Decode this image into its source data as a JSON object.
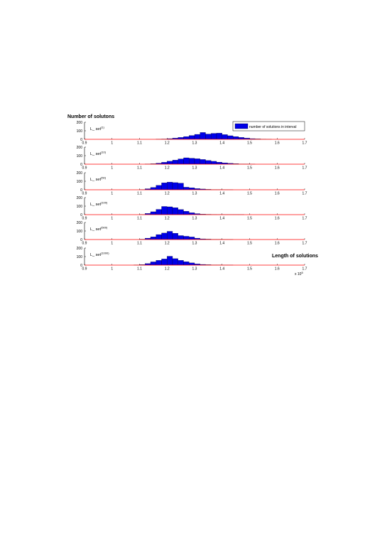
{
  "figure": {
    "ylabel": "Number of solutons",
    "xlabel": "Length of solutions",
    "x_multiplier": {
      "base": "x 10",
      "exp": "5"
    },
    "legend": "number of solutions in interval"
  },
  "colors": {
    "bar": "#0000e6",
    "baseline": "#ff0000"
  },
  "chart_data": [
    {
      "type": "bar",
      "label": "L_ set",
      "sup": "(1)",
      "xlim": [
        0.9,
        1.7
      ],
      "ylim": [
        0,
        200
      ],
      "bin_width": 0.02,
      "x_ticks": [
        "0.9",
        "1",
        "1.1",
        "1.2",
        "1.3",
        "1.4",
        "1.5",
        "1.6",
        "1.7"
      ],
      "y_ticks": [
        "0",
        "100",
        "200"
      ],
      "bin_starts": [
        1.16,
        1.18,
        1.2,
        1.22,
        1.24,
        1.26,
        1.28,
        1.3,
        1.32,
        1.34,
        1.36,
        1.38,
        1.4,
        1.42,
        1.44,
        1.46,
        1.48,
        1.5,
        1.52,
        1.54,
        1.56
      ],
      "values": [
        2,
        4,
        8,
        14,
        22,
        32,
        45,
        58,
        80,
        62,
        70,
        72,
        55,
        42,
        32,
        22,
        14,
        8,
        5,
        3,
        1
      ]
    },
    {
      "type": "bar",
      "label": "L_ set",
      "sup": "(10)",
      "xlim": [
        0.9,
        1.7
      ],
      "ylim": [
        0,
        200
      ],
      "bin_width": 0.02,
      "x_ticks": [
        "0.9",
        "1",
        "1.1",
        "1.2",
        "1.3",
        "1.4",
        "1.5",
        "1.6",
        "1.7"
      ],
      "y_ticks": [
        "0",
        "100",
        "200"
      ],
      "bin_starts": [
        1.12,
        1.14,
        1.16,
        1.18,
        1.2,
        1.22,
        1.24,
        1.26,
        1.28,
        1.3,
        1.32,
        1.34,
        1.36,
        1.38,
        1.4,
        1.42,
        1.44,
        1.46,
        1.48,
        1.5
      ],
      "values": [
        2,
        5,
        12,
        22,
        35,
        48,
        62,
        75,
        70,
        64,
        55,
        44,
        34,
        24,
        16,
        10,
        6,
        3,
        2,
        1
      ]
    },
    {
      "type": "bar",
      "label": "L_ set",
      "sup": "(50)",
      "xlim": [
        0.9,
        1.7
      ],
      "ylim": [
        0,
        200
      ],
      "bin_width": 0.02,
      "x_ticks": [
        "0.9",
        "1",
        "1.1",
        "1.2",
        "1.3",
        "1.4",
        "1.5",
        "1.6",
        "1.7"
      ],
      "y_ticks": [
        "0",
        "100",
        "200"
      ],
      "bin_starts": [
        1.1,
        1.12,
        1.14,
        1.16,
        1.18,
        1.2,
        1.22,
        1.24,
        1.26,
        1.28,
        1.3,
        1.32,
        1.34,
        1.36,
        1.38,
        1.4,
        1.42
      ],
      "values": [
        3,
        12,
        28,
        52,
        82,
        90,
        84,
        78,
        30,
        24,
        14,
        9,
        5,
        3,
        2,
        1,
        1
      ]
    },
    {
      "type": "bar",
      "label": "L_ set",
      "sup": "(100)",
      "xlim": [
        0.9,
        1.7
      ],
      "ylim": [
        0,
        200
      ],
      "bin_width": 0.02,
      "x_ticks": [
        "0.9",
        "1",
        "1.1",
        "1.2",
        "1.3",
        "1.4",
        "1.5",
        "1.6",
        "1.7"
      ],
      "y_ticks": [
        "0",
        "100",
        "200"
      ],
      "bin_starts": [
        1.1,
        1.12,
        1.14,
        1.16,
        1.18,
        1.2,
        1.22,
        1.24,
        1.26,
        1.28,
        1.3,
        1.32,
        1.34,
        1.36,
        1.38,
        1.4,
        1.42,
        1.44,
        1.46
      ],
      "values": [
        3,
        14,
        34,
        62,
        96,
        92,
        82,
        60,
        40,
        22,
        12,
        6,
        4,
        2,
        1,
        1,
        1,
        1,
        1
      ]
    },
    {
      "type": "bar",
      "label": "L_ set",
      "sup": "(500)",
      "xlim": [
        0.9,
        1.7
      ],
      "ylim": [
        0,
        200
      ],
      "bin_width": 0.02,
      "x_ticks": [
        "0.9",
        "1",
        "1.1",
        "1.2",
        "1.3",
        "1.4",
        "1.5",
        "1.6",
        "1.7"
      ],
      "y_ticks": [
        "0",
        "100",
        "200"
      ],
      "bin_starts": [
        1.1,
        1.12,
        1.14,
        1.16,
        1.18,
        1.2,
        1.22,
        1.24,
        1.26,
        1.28,
        1.3,
        1.32,
        1.34,
        1.36,
        1.38,
        1.4,
        1.42
      ],
      "values": [
        4,
        16,
        32,
        58,
        76,
        96,
        74,
        46,
        38,
        30,
        16,
        8,
        5,
        3,
        2,
        1,
        1
      ]
    },
    {
      "type": "bar",
      "label": "L_ set",
      "sup": "(1000)",
      "xlim": [
        0.9,
        1.7
      ],
      "ylim": [
        0,
        200
      ],
      "bin_width": 0.02,
      "x_ticks": [
        "0.9",
        "1",
        "1.1",
        "1.2",
        "1.3",
        "1.4",
        "1.5",
        "1.6",
        "1.7"
      ],
      "y_ticks": [
        "0",
        "100",
        "200"
      ],
      "bin_starts": [
        1.08,
        1.1,
        1.12,
        1.14,
        1.16,
        1.18,
        1.2,
        1.22,
        1.24,
        1.26,
        1.28,
        1.3,
        1.32,
        1.34,
        1.36,
        1.38,
        1.4,
        1.42
      ],
      "values": [
        2,
        6,
        18,
        38,
        56,
        72,
        104,
        76,
        56,
        40,
        26,
        14,
        8,
        5,
        3,
        2,
        1,
        1
      ]
    }
  ]
}
